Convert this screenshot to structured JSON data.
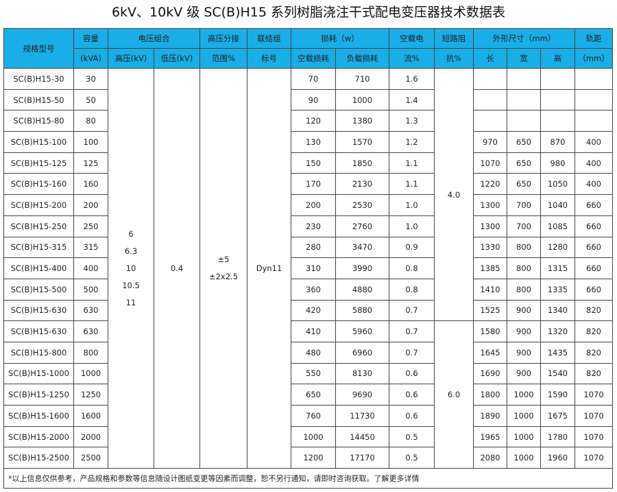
{
  "title": "6kV、10kV 级 SC(B)H15 系列树脂浇注干式配电变压器技术数据表",
  "headers": {
    "model": "规格型号",
    "capacity": [
      "容量",
      "(kVA)"
    ],
    "voltage": "电压组合",
    "hv": "高压(kV)",
    "lv": "低压(kV)",
    "tap": [
      "高压分接",
      "范围%"
    ],
    "group": [
      "联结组",
      "标号"
    ],
    "loss": "损耗（w）",
    "noload_loss": "空载损耗",
    "load_loss": "负载损耗",
    "noload_current": [
      "空载电",
      "流%"
    ],
    "impedance": [
      "短路阻",
      "抗%"
    ],
    "dims": "外形尺寸（mm）",
    "len": "长",
    "wid": "宽",
    "hei": "高",
    "track": [
      "轨距",
      "（mm）"
    ]
  },
  "merged": {
    "hv": [
      "6",
      "6.3",
      "10",
      "10.5",
      "11"
    ],
    "lv": "0.4",
    "tap": [
      "±5",
      "±2x2.5"
    ],
    "group": "Dyn11",
    "impedance_a": "4.0",
    "impedance_b": "6.0"
  },
  "rows": [
    [
      "SC(B)H15-30",
      "30",
      "70",
      "710",
      "1.6",
      "",
      "",
      "",
      ""
    ],
    [
      "SC(B)H15-50",
      "50",
      "90",
      "1000",
      "1.4",
      "",
      "",
      "",
      ""
    ],
    [
      "SC(B)H15-80",
      "80",
      "120",
      "1380",
      "1.3",
      "",
      "",
      "",
      ""
    ],
    [
      "SC(B)H15-100",
      "100",
      "130",
      "1570",
      "1.2",
      "970",
      "650",
      "870",
      "400"
    ],
    [
      "SC(B)H15-125",
      "125",
      "150",
      "1850",
      "1.1",
      "1070",
      "650",
      "980",
      "400"
    ],
    [
      "SC(B)H15-160",
      "160",
      "170",
      "2130",
      "1.1",
      "1220",
      "650",
      "1050",
      "400"
    ],
    [
      "SC(B)H15-200",
      "200",
      "200",
      "2530",
      "1.0",
      "1300",
      "700",
      "1040",
      "660"
    ],
    [
      "SC(B)H15-250",
      "250",
      "230",
      "2760",
      "1.0",
      "1300",
      "700",
      "1085",
      "660"
    ],
    [
      "SC(B)H15-315",
      "315",
      "280",
      "3470",
      "0.9",
      "1330",
      "800",
      "1280",
      "660"
    ],
    [
      "SC(B)H15-400",
      "400",
      "310",
      "3990",
      "0.8",
      "1385",
      "800",
      "1315",
      "660"
    ],
    [
      "SC(B)H15-500",
      "500",
      "360",
      "4880",
      "0.8",
      "1410",
      "800",
      "1335",
      "660"
    ],
    [
      "SC(B)H15-630",
      "630",
      "420",
      "5880",
      "0.7",
      "1525",
      "900",
      "1340",
      "820"
    ],
    [
      "SC(B)H15-630",
      "630",
      "410",
      "5960",
      "0.7",
      "1580",
      "900",
      "1320",
      "820"
    ],
    [
      "SC(B)H15-800",
      "800",
      "480",
      "6960",
      "0.7",
      "1645",
      "900",
      "1435",
      "820"
    ],
    [
      "SC(B)H15-1000",
      "1000",
      "550",
      "8130",
      "0.6",
      "1690",
      "900",
      "1540",
      "820"
    ],
    [
      "SC(B)H15-1250",
      "1250",
      "650",
      "9690",
      "0.6",
      "1800",
      "1000",
      "1590",
      "1070"
    ],
    [
      "SC(B)H15-1600",
      "1600",
      "760",
      "11730",
      "0.6",
      "1890",
      "1000",
      "1675",
      "1070"
    ],
    [
      "SC(B)H15-2000",
      "2000",
      "1000",
      "14450",
      "0.5",
      "1965",
      "1000",
      "1780",
      "1070"
    ],
    [
      "SC(B)H15-2500",
      "2500",
      "1200",
      "17170",
      "0.5",
      "2080",
      "1000",
      "1960",
      "1070"
    ]
  ],
  "footer": "*以上信息仅供参考，产品规格和参数等信息随设计图纸变更等因素而调整，恕不另行通知，请即时咨询获取。了解更多详情",
  "colors": {
    "header_bg": "#19aee8",
    "border": "#444444"
  }
}
